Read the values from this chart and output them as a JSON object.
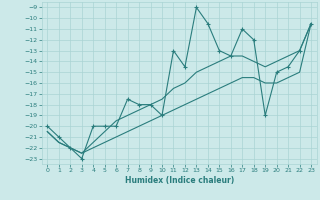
{
  "xlabel": "Humidex (Indice chaleur)",
  "x": [
    0,
    1,
    2,
    3,
    4,
    5,
    6,
    7,
    8,
    9,
    10,
    11,
    12,
    13,
    14,
    15,
    16,
    17,
    18,
    19,
    20,
    21,
    22,
    23
  ],
  "y_main": [
    -20,
    -21,
    -22,
    -23,
    -20,
    -20,
    -20,
    -17.5,
    -18,
    -18,
    -19,
    -13,
    -14.5,
    -9,
    -10.5,
    -13,
    -13.5,
    -11,
    -12,
    -19,
    -15,
    -14.5,
    -13,
    -10.5
  ],
  "y_line1": [
    -20.5,
    -21.5,
    -22,
    -22.5,
    -21.5,
    -20.5,
    -19.5,
    -19,
    -18.5,
    -18,
    -17.5,
    -16.5,
    -16,
    -15,
    -14.5,
    -14,
    -13.5,
    -13.5,
    -14,
    -14.5,
    -14,
    -13.5,
    -13,
    -10.5
  ],
  "y_line2": [
    -20.5,
    -21.5,
    -22,
    -22.5,
    -22,
    -21.5,
    -21,
    -20.5,
    -20,
    -19.5,
    -19,
    -18.5,
    -18,
    -17.5,
    -17,
    -16.5,
    -16,
    -15.5,
    -15.5,
    -16,
    -16,
    -15.5,
    -15,
    -10.5
  ],
  "ylim": [
    -23.5,
    -8.5
  ],
  "xlim": [
    -0.5,
    23.5
  ],
  "yticks": [
    -9,
    -10,
    -11,
    -12,
    -13,
    -14,
    -15,
    -16,
    -17,
    -18,
    -19,
    -20,
    -21,
    -22,
    -23
  ],
  "xticks": [
    0,
    1,
    2,
    3,
    4,
    5,
    6,
    7,
    8,
    9,
    10,
    11,
    12,
    13,
    14,
    15,
    16,
    17,
    18,
    19,
    20,
    21,
    22,
    23
  ],
  "line_color": "#2a7d7d",
  "bg_color": "#cce9e9",
  "grid_color": "#aad4d4"
}
